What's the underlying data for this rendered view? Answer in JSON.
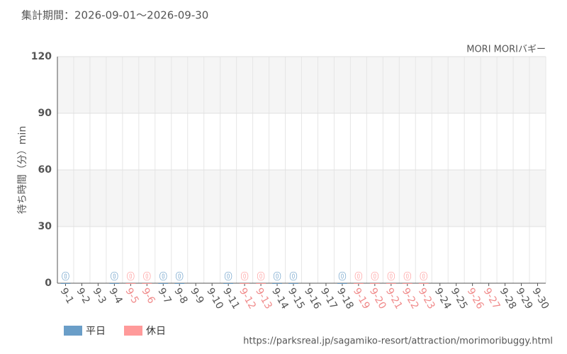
{
  "chart_data": {
    "type": "bar",
    "title": "集計期間：2026-09-01～2026-09-30",
    "subtitle": "MORI MORIバギー",
    "y_label": "待ち時間（分）min",
    "source": "https://parksreal.jp/sagamiko-resort/attraction/morimoribuggy.html",
    "categories": [
      "9-1",
      "9-2",
      "9-3",
      "9-4",
      "9-5",
      "9-6",
      "9-7",
      "9-8",
      "9-9",
      "9-10",
      "9-11",
      "9-12",
      "9-13",
      "9-14",
      "9-15",
      "9-16",
      "9-17",
      "9-18",
      "9-19",
      "9-20",
      "9-21",
      "9-22",
      "9-23",
      "9-24",
      "9-25",
      "9-26",
      "9-27",
      "9-28",
      "9-29",
      "9-30"
    ],
    "category_colors": [
      "#555",
      "#555",
      "#555",
      "#555",
      "#f08a8a",
      "#f08a8a",
      "#555",
      "#555",
      "#555",
      "#555",
      "#555",
      "#f08a8a",
      "#f08a8a",
      "#555",
      "#555",
      "#555",
      "#555",
      "#555",
      "#f08a8a",
      "#f08a8a",
      "#f08a8a",
      "#f08a8a",
      "#f08a8a",
      "#555",
      "#555",
      "#f08a8a",
      "#f08a8a",
      "#555",
      "#555",
      "#555"
    ],
    "series": [
      {
        "name": "平日",
        "color": "#6a9ec8",
        "values": [
          0,
          null,
          null,
          0,
          null,
          null,
          0,
          0,
          null,
          null,
          0,
          null,
          null,
          0,
          0,
          null,
          null,
          0,
          null,
          null,
          null,
          null,
          null,
          null,
          null,
          null,
          null,
          null,
          null,
          null
        ]
      },
      {
        "name": "休日",
        "color": "#ff9a9a",
        "values": [
          null,
          null,
          null,
          null,
          0,
          0,
          null,
          null,
          null,
          null,
          null,
          0,
          0,
          null,
          null,
          null,
          null,
          null,
          0,
          0,
          0,
          0,
          0,
          null,
          null,
          null,
          null,
          null,
          null,
          null
        ]
      }
    ],
    "ylim": [
      0,
      120
    ],
    "yticks": [
      0,
      30,
      60,
      90,
      120
    ],
    "grid": true
  }
}
